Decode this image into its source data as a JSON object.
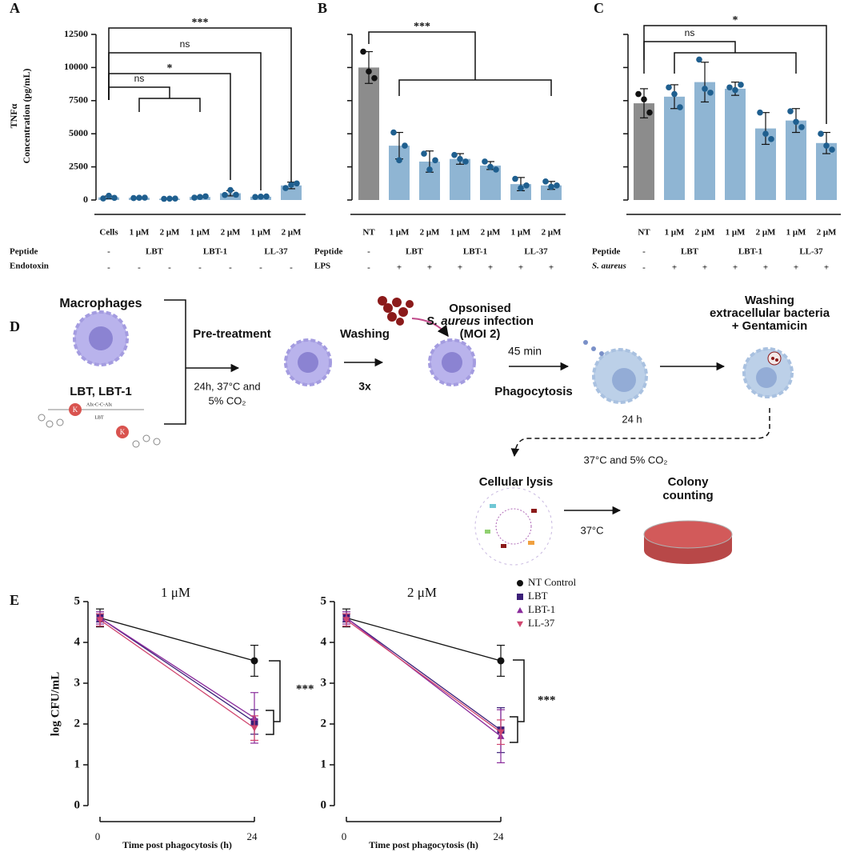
{
  "chart_data": [
    {
      "type": "bar",
      "label": "A",
      "y_label": [
        "TNFα",
        "Concentration (pg/mL)"
      ],
      "categories": [
        "Cells",
        "1 μM",
        "2 μM",
        "1 μM",
        "2 μM",
        "1 μM",
        "2 μM"
      ],
      "values": [
        200,
        170,
        100,
        230,
        510,
        250,
        1100
      ],
      "errors": [
        100,
        20,
        15,
        50,
        200,
        20,
        250
      ],
      "points": [
        [
          120,
          320,
          160
        ],
        [
          150,
          170,
          180
        ],
        [
          90,
          100,
          110
        ],
        [
          180,
          230,
          280
        ],
        [
          380,
          750,
          400
        ],
        [
          230,
          250,
          270
        ],
        [
          900,
          1150,
          1250
        ]
      ],
      "colors": [
        "#8fb5d3",
        "#8fb5d3",
        "#8fb5d3",
        "#8fb5d3",
        "#8fb5d3",
        "#8fb5d3",
        "#8fb5d3"
      ],
      "point_colors": [
        "#1f5f8f",
        "#1f5f8f",
        "#1f5f8f",
        "#1f5f8f",
        "#1f5f8f",
        "#1f5f8f",
        "#1f5f8f"
      ],
      "ylim": [
        0,
        12500
      ],
      "yticks": [
        0,
        2500,
        5000,
        7500,
        10000,
        12500
      ],
      "ytick_labels": true,
      "rows": [
        {
          "label": "Peptide",
          "cells": [
            "-",
            "LBT",
            "LBT-1",
            "LL-37"
          ]
        },
        {
          "label": "Endotoxin",
          "cells": [
            "-",
            "-",
            "-",
            "-",
            "-",
            "-",
            "-"
          ]
        }
      ],
      "significance": [
        "***",
        "ns",
        "*",
        "ns"
      ]
    },
    {
      "type": "bar",
      "label": "B",
      "categories": [
        "NT",
        "1 μM",
        "2 μM",
        "1 μM",
        "2 μM",
        "1 μM",
        "2 μM"
      ],
      "values": [
        10000,
        4100,
        2900,
        3100,
        2600,
        1200,
        1100
      ],
      "errors": [
        1200,
        1000,
        800,
        400,
        300,
        500,
        300
      ],
      "points": [
        [
          11200,
          9700,
          9200
        ],
        [
          5100,
          3000,
          4100
        ],
        [
          3500,
          2300,
          3000
        ],
        [
          3400,
          3100,
          2900
        ],
        [
          2900,
          2500,
          2300
        ],
        [
          1600,
          900,
          1100
        ],
        [
          1400,
          1000,
          1100
        ]
      ],
      "colors": [
        "#8c8c8c",
        "#8fb5d3",
        "#8fb5d3",
        "#8fb5d3",
        "#8fb5d3",
        "#8fb5d3",
        "#8fb5d3"
      ],
      "point_colors": [
        "#111111",
        "#1f5f8f",
        "#1f5f8f",
        "#1f5f8f",
        "#1f5f8f",
        "#1f5f8f",
        "#1f5f8f"
      ],
      "ylim": [
        0,
        12500
      ],
      "yticks": [
        0,
        2500,
        5000,
        7500,
        10000,
        12500
      ],
      "ytick_labels": false,
      "rows": [
        {
          "label": "Peptide",
          "cells": [
            "-",
            "LBT",
            "LBT-1",
            "LL-37"
          ]
        },
        {
          "label": "LPS",
          "cells": [
            "-",
            "+",
            "+",
            "+",
            "+",
            "+",
            "+"
          ]
        }
      ],
      "significance": [
        "***"
      ]
    },
    {
      "type": "bar",
      "label": "C",
      "categories": [
        "NT",
        "1 μM",
        "2 μM",
        "1 μM",
        "2 μM",
        "1 μM",
        "2 μM"
      ],
      "values": [
        7300,
        7800,
        8900,
        8400,
        5400,
        6000,
        4300
      ],
      "errors": [
        1100,
        900,
        1500,
        500,
        1200,
        900,
        800
      ],
      "points": [
        [
          8000,
          7600,
          6600
        ],
        [
          8500,
          8000,
          7000
        ],
        [
          10600,
          8400,
          8100
        ],
        [
          8500,
          8300,
          8700
        ],
        [
          6600,
          5000,
          4600
        ],
        [
          6700,
          5900,
          5500
        ],
        [
          5000,
          4100,
          3800
        ]
      ],
      "colors": [
        "#8c8c8c",
        "#8fb5d3",
        "#8fb5d3",
        "#8fb5d3",
        "#8fb5d3",
        "#8fb5d3",
        "#8fb5d3"
      ],
      "point_colors": [
        "#111111",
        "#1f5f8f",
        "#1f5f8f",
        "#1f5f8f",
        "#1f5f8f",
        "#1f5f8f",
        "#1f5f8f"
      ],
      "ylim": [
        0,
        12500
      ],
      "yticks": [
        0,
        2500,
        5000,
        7500,
        10000,
        12500
      ],
      "ytick_labels": false,
      "rows": [
        {
          "label": "Peptide",
          "cells": [
            "-",
            "LBT",
            "LBT-1",
            "LL-37"
          ]
        },
        {
          "label": "S. aureus",
          "cells": [
            "-",
            "+",
            "+",
            "+",
            "+",
            "+",
            "+"
          ]
        }
      ],
      "significance": [
        "*",
        "ns"
      ]
    },
    {
      "type": "line",
      "label": "E",
      "title": "1 μM",
      "y_label": "log CFU/mL",
      "x_label": "Time post phagocytosis (h)",
      "x": [
        0,
        24
      ],
      "xlim": [
        0,
        24
      ],
      "xticks": [
        0,
        24
      ],
      "ylim": [
        0,
        5
      ],
      "yticks": [
        0,
        1,
        2,
        3,
        4,
        5
      ],
      "legend": "right",
      "series": [
        {
          "name": "NT Control",
          "color": "#111111",
          "marker": "circle",
          "values": [
            4.6,
            3.55
          ],
          "errors": [
            0.22,
            0.38
          ]
        },
        {
          "name": "LBT",
          "color": "#3b1f78",
          "marker": "square",
          "values": [
            4.6,
            2.05
          ],
          "errors": [
            0.1,
            0.3
          ]
        },
        {
          "name": "LBT-1",
          "color": "#8a2c9c",
          "marker": "triangle",
          "values": [
            4.6,
            2.15
          ],
          "errors": [
            0.15,
            0.62
          ]
        },
        {
          "name": "LL-37",
          "color": "#d0466f",
          "marker": "triangle-down",
          "values": [
            4.55,
            1.9
          ],
          "errors": [
            0.15,
            0.3
          ]
        }
      ],
      "significance": [
        "***"
      ]
    },
    {
      "type": "line",
      "title": "2 μM",
      "x_label": "Time post phagocytosis (h)",
      "x": [
        0,
        24
      ],
      "xlim": [
        0,
        24
      ],
      "xticks": [
        0,
        24
      ],
      "ylim": [
        0,
        5
      ],
      "yticks": [
        0,
        1,
        2,
        3,
        4,
        5
      ],
      "series": [
        {
          "name": "NT Control",
          "color": "#111111",
          "marker": "circle",
          "values": [
            4.6,
            3.55
          ],
          "errors": [
            0.22,
            0.38
          ]
        },
        {
          "name": "LBT",
          "color": "#3b1f78",
          "marker": "square",
          "values": [
            4.6,
            1.85
          ],
          "errors": [
            0.1,
            0.55
          ]
        },
        {
          "name": "LBT-1",
          "color": "#8a2c9c",
          "marker": "triangle",
          "values": [
            4.6,
            1.7
          ],
          "errors": [
            0.15,
            0.65
          ]
        },
        {
          "name": "LL-37",
          "color": "#d0466f",
          "marker": "triangle-down",
          "values": [
            4.55,
            1.8
          ],
          "errors": [
            0.15,
            0.3
          ]
        }
      ],
      "significance": [
        "***"
      ]
    }
  ],
  "diagram": {
    "label": "D",
    "macrophages": "Macrophages",
    "treatments": "LBT, LBT-1",
    "pretreatment": "Pre-treatment",
    "conditions": [
      "24h, 37°C and",
      "5% CO₂"
    ],
    "washing": "Washing",
    "times": "3x",
    "infection_title": "Opsonised",
    "infection_organism": "S. aureus",
    "infection_word": " infection",
    "moi": "(MOI 2)",
    "duration": "45 min",
    "phagocytosis": "Phagocytosis",
    "incubation": "24 h",
    "wash_step": [
      "Washing",
      "extracellular bacteria",
      "+ Gentamicin"
    ],
    "incubation_conditions": "37°C and 5% CO₂",
    "lysis": "Cellular lysis",
    "lysis_temp": "37°C",
    "counting": [
      "Colony",
      "counting"
    ],
    "molecule": {
      "residue": "K",
      "linker": "Alx-C-C-Alx",
      "name": "LBT"
    }
  }
}
